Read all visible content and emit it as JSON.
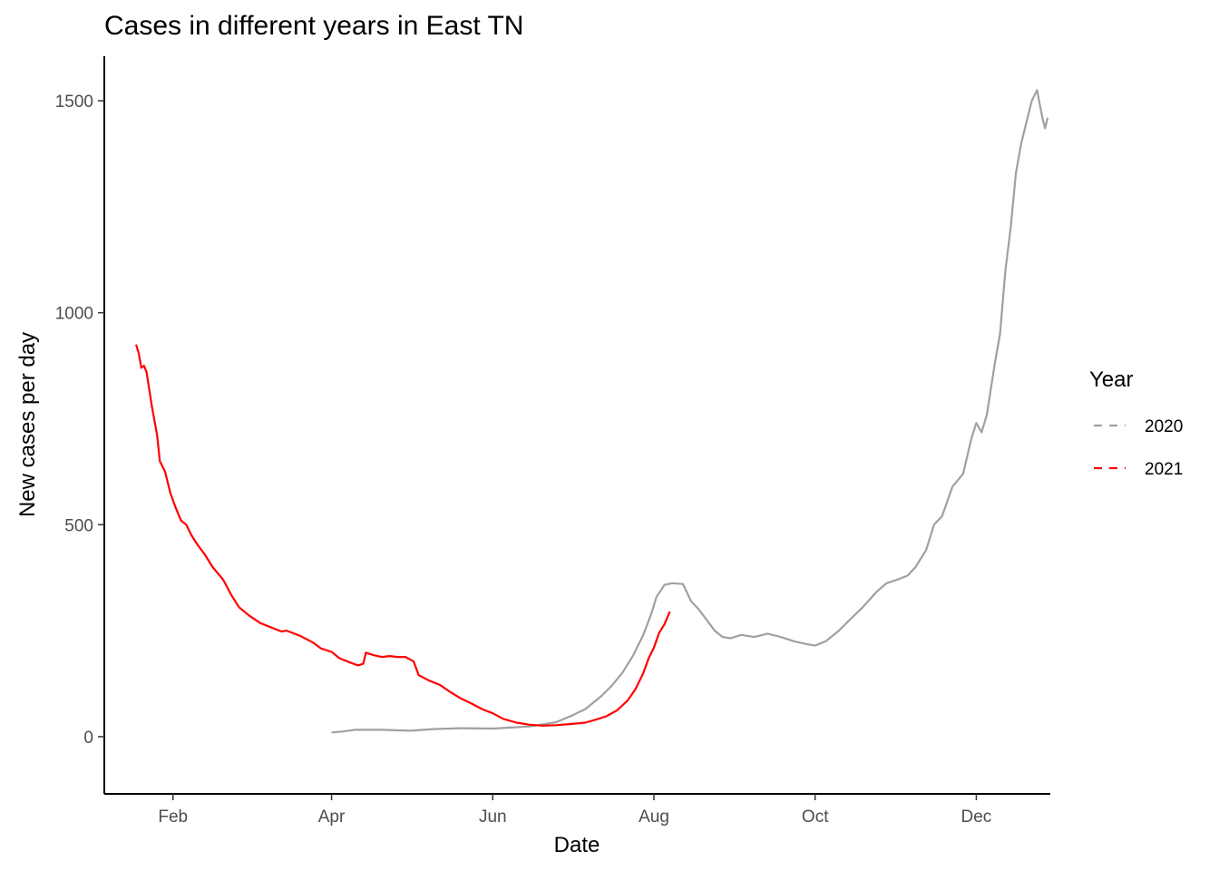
{
  "chart_data": {
    "type": "line",
    "title": "Cases in different years in East TN",
    "xlabel": "Date",
    "ylabel": "New cases per day",
    "x_axis": {
      "type": "date",
      "range": [
        "2000-01-06",
        "2000-12-29"
      ],
      "tick_dates": [
        "2000-02-01",
        "2000-04-01",
        "2000-06-01",
        "2000-08-01",
        "2000-10-01",
        "2000-12-01"
      ],
      "tick_labels": [
        "Feb",
        "Apr",
        "Jun",
        "Aug",
        "Oct",
        "Dec"
      ]
    },
    "y_axis": {
      "range": [
        -135,
        1605
      ],
      "ticks": [
        0,
        500,
        1000,
        1500
      ],
      "tick_labels": [
        "0",
        "500",
        "1000",
        "1500"
      ]
    },
    "grid": false,
    "legend": {
      "title": "Year",
      "position": "right",
      "entries": [
        "2020",
        "2021"
      ]
    },
    "series": [
      {
        "name": "2020",
        "color": "#a0a0a0",
        "points": [
          [
            "2000-04-01",
            10
          ],
          [
            "2000-04-05",
            12
          ],
          [
            "2000-04-10",
            16
          ],
          [
            "2000-04-20",
            16
          ],
          [
            "2000-05-01",
            14
          ],
          [
            "2000-05-10",
            18
          ],
          [
            "2000-05-20",
            20
          ],
          [
            "2000-06-01",
            19
          ],
          [
            "2000-06-15",
            24
          ],
          [
            "2000-06-25",
            34
          ],
          [
            "2000-07-01",
            50
          ],
          [
            "2000-07-06",
            65
          ],
          [
            "2000-07-12",
            95
          ],
          [
            "2000-07-16",
            120
          ],
          [
            "2000-07-20",
            150
          ],
          [
            "2000-07-24",
            190
          ],
          [
            "2000-07-28",
            240
          ],
          [
            "2000-07-31",
            290
          ],
          [
            "2000-08-02",
            330
          ],
          [
            "2000-08-05",
            358
          ],
          [
            "2000-08-08",
            362
          ],
          [
            "2000-08-12",
            360
          ],
          [
            "2000-08-15",
            320
          ],
          [
            "2000-08-18",
            300
          ],
          [
            "2000-08-21",
            275
          ],
          [
            "2000-08-24",
            250
          ],
          [
            "2000-08-27",
            235
          ],
          [
            "2000-08-30",
            232
          ],
          [
            "2000-09-03",
            240
          ],
          [
            "2000-09-08",
            235
          ],
          [
            "2000-09-13",
            243
          ],
          [
            "2000-09-18",
            235
          ],
          [
            "2000-09-23",
            225
          ],
          [
            "2000-09-28",
            218
          ],
          [
            "2000-10-01",
            215
          ],
          [
            "2000-10-05",
            225
          ],
          [
            "2000-10-10",
            250
          ],
          [
            "2000-10-14",
            275
          ],
          [
            "2000-10-19",
            305
          ],
          [
            "2000-10-24",
            340
          ],
          [
            "2000-10-28",
            362
          ],
          [
            "2000-11-01",
            370
          ],
          [
            "2000-11-05",
            380
          ],
          [
            "2000-11-08",
            400
          ],
          [
            "2000-11-12",
            440
          ],
          [
            "2000-11-15",
            500
          ],
          [
            "2000-11-18",
            520
          ],
          [
            "2000-11-22",
            590
          ],
          [
            "2000-11-26",
            620
          ],
          [
            "2000-11-29",
            700
          ],
          [
            "2000-12-01",
            740
          ],
          [
            "2000-12-03",
            718
          ],
          [
            "2000-12-05",
            760
          ],
          [
            "2000-12-08",
            880
          ],
          [
            "2000-12-10",
            950
          ],
          [
            "2000-12-12",
            1100
          ],
          [
            "2000-12-14",
            1200
          ],
          [
            "2000-12-16",
            1330
          ],
          [
            "2000-12-18",
            1400
          ],
          [
            "2000-12-20",
            1450
          ],
          [
            "2000-12-22",
            1500
          ],
          [
            "2000-12-24",
            1525
          ],
          [
            "2000-12-26",
            1460
          ],
          [
            "2000-12-27",
            1435
          ],
          [
            "2000-12-28",
            1460
          ]
        ]
      },
      {
        "name": "2021",
        "color": "#ff0000",
        "points": [
          [
            "2000-01-18",
            925
          ],
          [
            "2000-01-19",
            905
          ],
          [
            "2000-01-20",
            870
          ],
          [
            "2000-01-21",
            875
          ],
          [
            "2000-01-22",
            860
          ],
          [
            "2000-01-24",
            780
          ],
          [
            "2000-01-26",
            710
          ],
          [
            "2000-01-27",
            650
          ],
          [
            "2000-01-29",
            625
          ],
          [
            "2000-01-31",
            575
          ],
          [
            "2000-02-02",
            540
          ],
          [
            "2000-02-04",
            510
          ],
          [
            "2000-02-06",
            500
          ],
          [
            "2000-02-08",
            475
          ],
          [
            "2000-02-10",
            455
          ],
          [
            "2000-02-13",
            430
          ],
          [
            "2000-02-16",
            400
          ],
          [
            "2000-02-20",
            370
          ],
          [
            "2000-02-23",
            335
          ],
          [
            "2000-02-26",
            305
          ],
          [
            "2000-03-01",
            285
          ],
          [
            "2000-03-05",
            268
          ],
          [
            "2000-03-09",
            258
          ],
          [
            "2000-03-13",
            248
          ],
          [
            "2000-03-15",
            250
          ],
          [
            "2000-03-20",
            238
          ],
          [
            "2000-03-25",
            222
          ],
          [
            "2000-03-28",
            208
          ],
          [
            "2000-04-01",
            200
          ],
          [
            "2000-04-04",
            185
          ],
          [
            "2000-04-08",
            175
          ],
          [
            "2000-04-11",
            168
          ],
          [
            "2000-04-13",
            172
          ],
          [
            "2000-04-14",
            198
          ],
          [
            "2000-04-17",
            192
          ],
          [
            "2000-04-20",
            188
          ],
          [
            "2000-04-23",
            190
          ],
          [
            "2000-04-26",
            188
          ],
          [
            "2000-04-29",
            188
          ],
          [
            "2000-05-02",
            178
          ],
          [
            "2000-05-04",
            145
          ],
          [
            "2000-05-08",
            132
          ],
          [
            "2000-05-12",
            122
          ],
          [
            "2000-05-16",
            105
          ],
          [
            "2000-05-20",
            90
          ],
          [
            "2000-05-24",
            78
          ],
          [
            "2000-05-28",
            65
          ],
          [
            "2000-06-01",
            55
          ],
          [
            "2000-06-05",
            42
          ],
          [
            "2000-06-10",
            33
          ],
          [
            "2000-06-15",
            28
          ],
          [
            "2000-06-20",
            26
          ],
          [
            "2000-06-25",
            27
          ],
          [
            "2000-07-01",
            30
          ],
          [
            "2000-07-06",
            33
          ],
          [
            "2000-07-10",
            40
          ],
          [
            "2000-07-14",
            48
          ],
          [
            "2000-07-18",
            62
          ],
          [
            "2000-07-22",
            85
          ],
          [
            "2000-07-25",
            112
          ],
          [
            "2000-07-28",
            150
          ],
          [
            "2000-07-30",
            185
          ],
          [
            "2000-08-01",
            210
          ],
          [
            "2000-08-03",
            245
          ],
          [
            "2000-08-05",
            265
          ],
          [
            "2000-08-07",
            295
          ]
        ]
      }
    ]
  }
}
